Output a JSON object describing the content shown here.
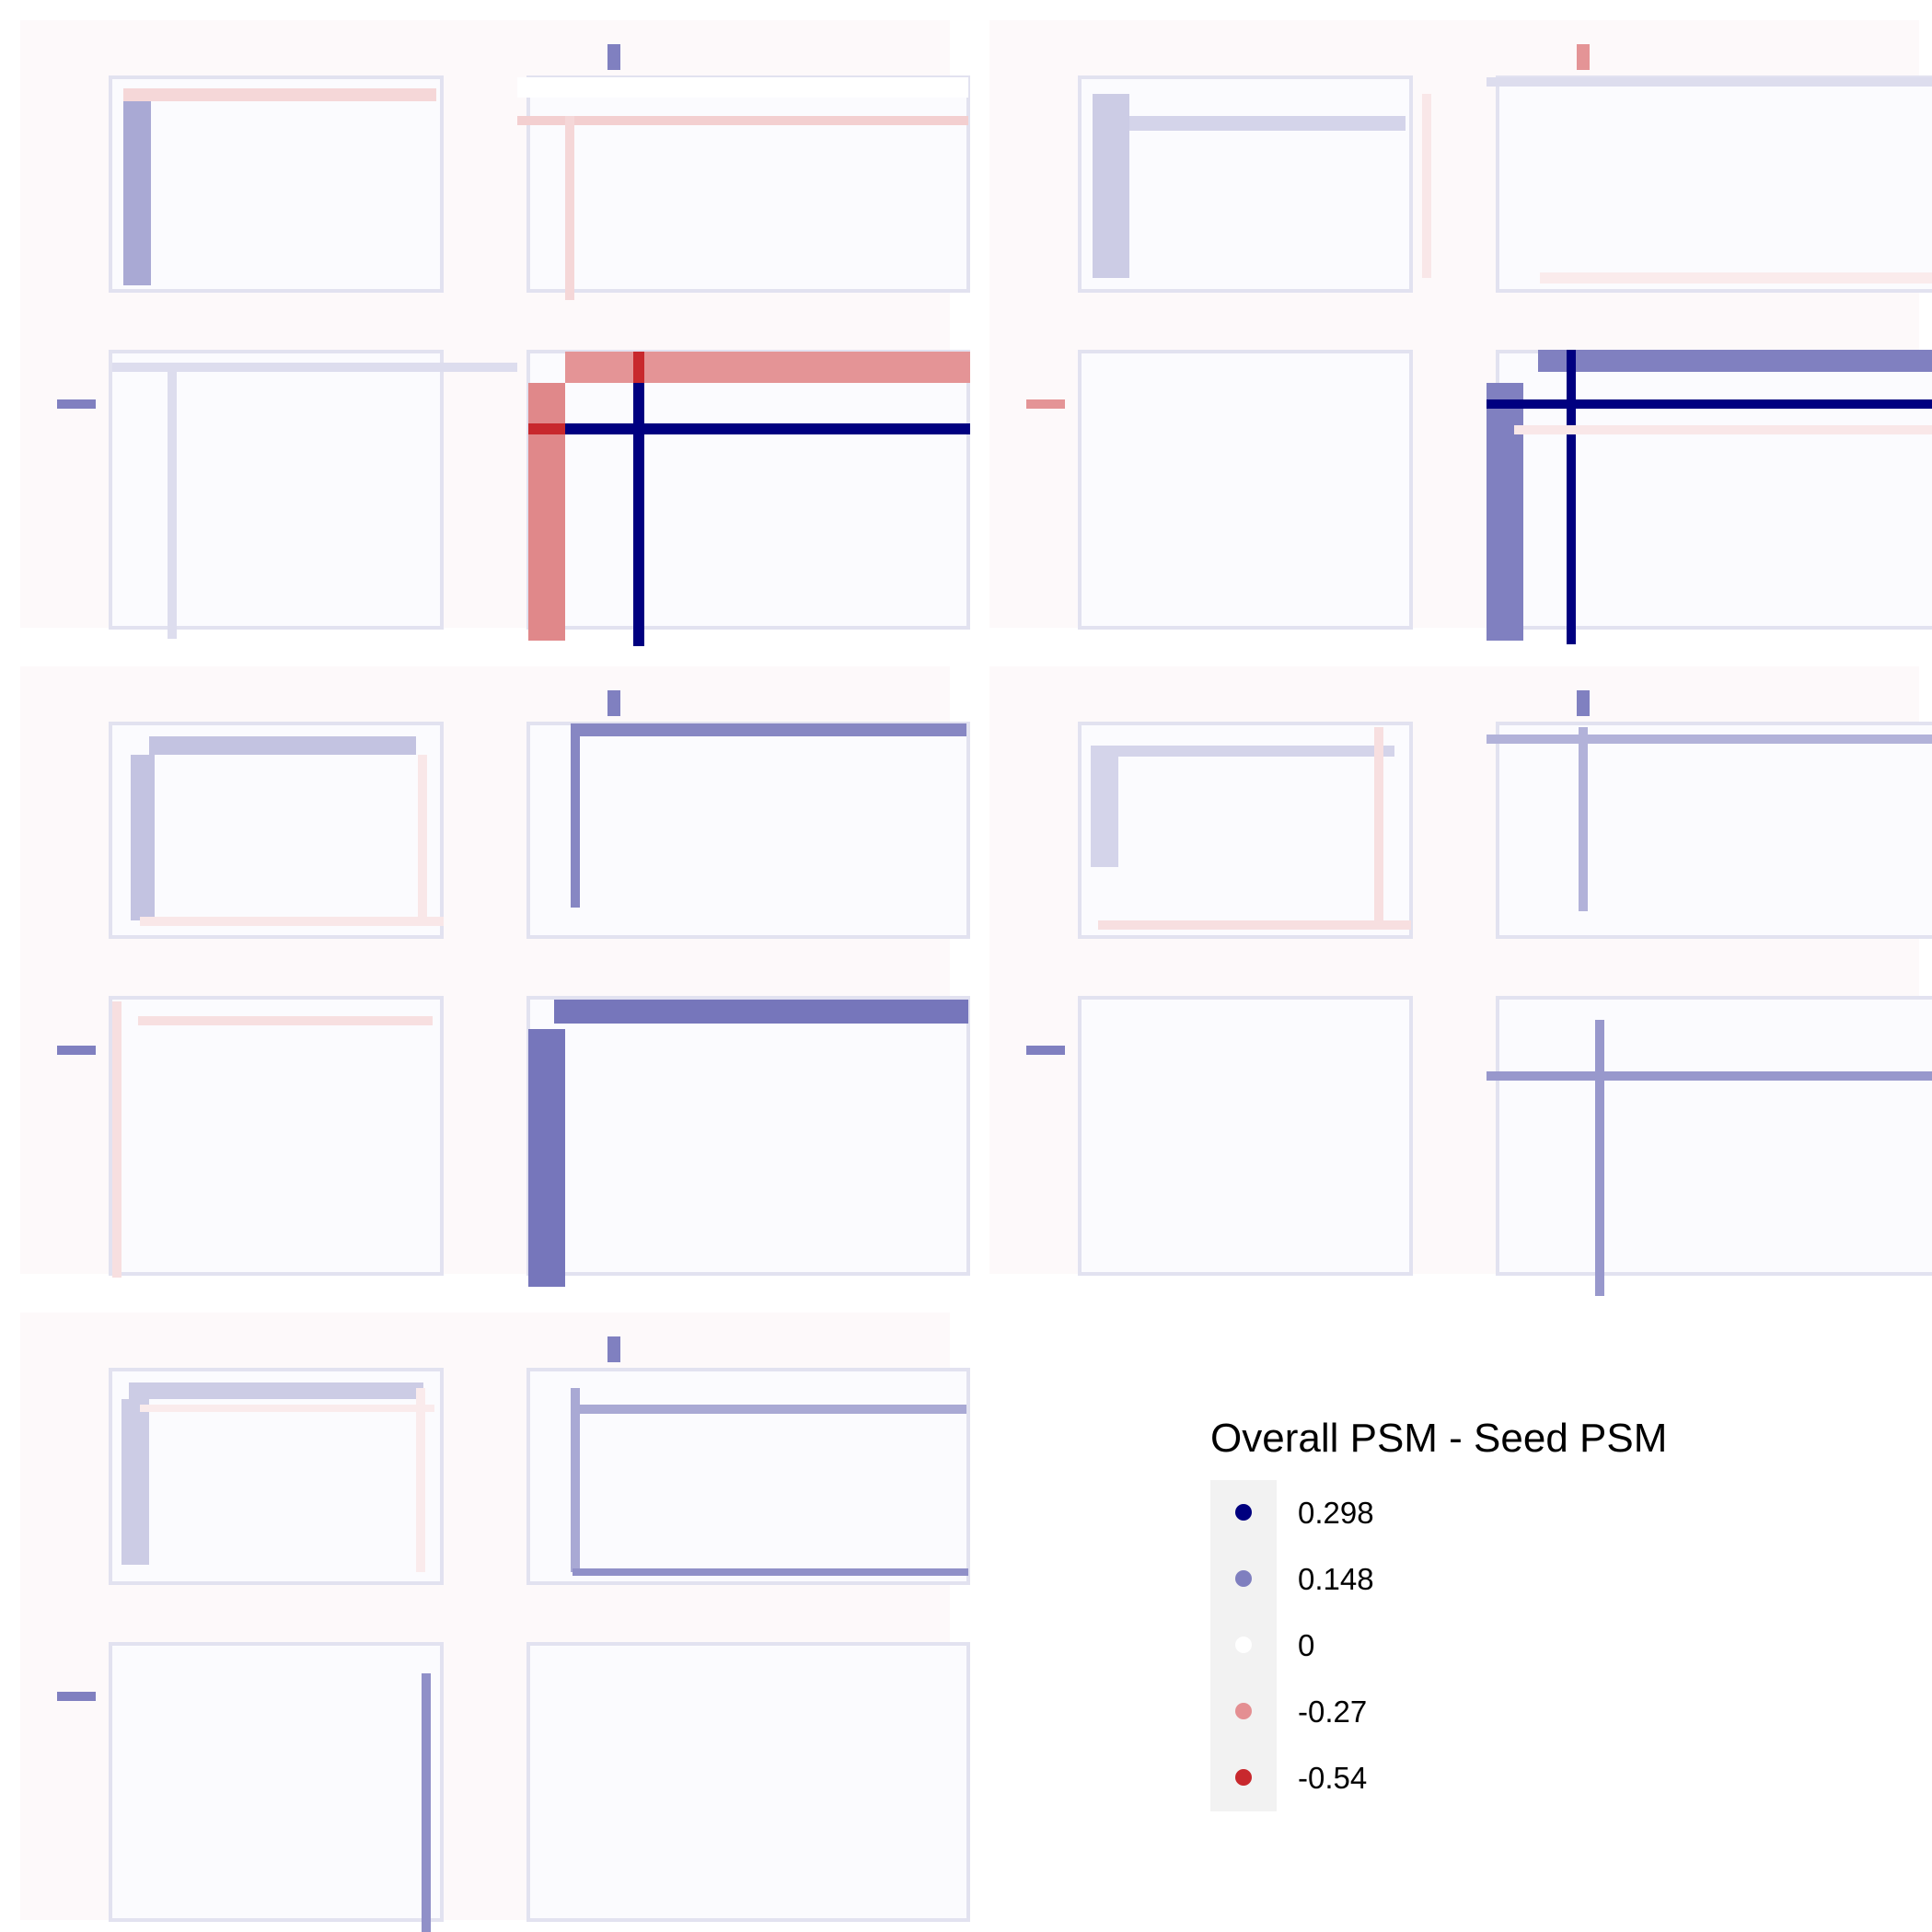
{
  "chart_data": {
    "type": "heatmap",
    "title": "",
    "panels": [
      {
        "name": "",
        "marker_row_value": 0.148,
        "marker_col_value": 0.148,
        "stripes": [
          {
            "dir": "h",
            "value": 0.0
          },
          {
            "dir": "h",
            "value": -0.12
          },
          {
            "dir": "v",
            "value": -0.1
          },
          {
            "dir": "h",
            "value": 0.04
          },
          {
            "dir": "v",
            "value": 0.04
          },
          {
            "dir": "h",
            "value": -0.1
          },
          {
            "dir": "v",
            "value": 0.1
          },
          {
            "dir": "h",
            "value": -0.27
          },
          {
            "dir": "v",
            "value": -0.3
          },
          {
            "dir": "h",
            "value": 0.298
          },
          {
            "dir": "v",
            "value": 0.298
          },
          {
            "dir": "cell",
            "value": -0.54
          },
          {
            "dir": "cell",
            "value": -0.54
          }
        ]
      },
      {
        "name": "",
        "marker_row_value": -0.27,
        "marker_col_value": -0.27,
        "stripes": [
          {
            "dir": "h",
            "value": 0.05
          },
          {
            "dir": "v",
            "value": 0.06
          },
          {
            "dir": "h",
            "value": 0.04
          },
          {
            "dir": "v",
            "value": -0.06
          },
          {
            "dir": "h",
            "value": -0.05
          },
          {
            "dir": "h",
            "value": 0.148
          },
          {
            "dir": "v",
            "value": 0.148
          },
          {
            "dir": "h",
            "value": 0.298
          },
          {
            "dir": "v",
            "value": 0.298
          },
          {
            "dir": "h",
            "value": -0.06
          }
        ]
      },
      {
        "name": "",
        "marker_row_value": 0.148,
        "marker_col_value": 0.148,
        "stripes": [
          {
            "dir": "h",
            "value": 0.07
          },
          {
            "dir": "v",
            "value": 0.07
          },
          {
            "dir": "h",
            "value": -0.06
          },
          {
            "dir": "v",
            "value": -0.06
          },
          {
            "dir": "h",
            "value": 0.14
          },
          {
            "dir": "v",
            "value": 0.14
          },
          {
            "dir": "h",
            "value": 0.16
          },
          {
            "dir": "v",
            "value": 0.16
          },
          {
            "dir": "h",
            "value": -0.08
          },
          {
            "dir": "v",
            "value": -0.08
          }
        ]
      },
      {
        "name": "",
        "marker_row_value": 0.148,
        "marker_col_value": 0.148,
        "stripes": [
          {
            "dir": "h",
            "value": 0.05
          },
          {
            "dir": "v",
            "value": 0.05
          },
          {
            "dir": "h",
            "value": 0.09
          },
          {
            "dir": "v",
            "value": 0.09
          },
          {
            "dir": "h",
            "value": -0.08
          },
          {
            "dir": "v",
            "value": -0.08
          },
          {
            "dir": "h",
            "value": 0.12
          },
          {
            "dir": "v",
            "value": 0.12
          }
        ]
      },
      {
        "name": "",
        "marker_row_value": 0.148,
        "marker_col_value": 0.148,
        "stripes": [
          {
            "dir": "h",
            "value": 0.06
          },
          {
            "dir": "v",
            "value": 0.06
          },
          {
            "dir": "h",
            "value": -0.05
          },
          {
            "dir": "v",
            "value": -0.05
          },
          {
            "dir": "h",
            "value": 0.1
          },
          {
            "dir": "v",
            "value": 0.1
          },
          {
            "dir": "h",
            "value": 0.13
          },
          {
            "dir": "v",
            "value": 0.13
          }
        ]
      }
    ],
    "color_scale": {
      "high": "#000080",
      "mid": "#FFFFFF",
      "low": "#C8282D",
      "max": 0.298,
      "min": -0.54
    },
    "legend": {
      "title": "Overall PSM - Seed PSM",
      "position": "right",
      "entries": [
        {
          "label": "0.298",
          "value": 0.298,
          "color": "#00007F"
        },
        {
          "label": "0.148",
          "value": 0.148,
          "color": "#7F7FBF"
        },
        {
          "label": "0",
          "value": 0,
          "color": "#FFFFFF"
        },
        {
          "label": "-0.27",
          "value": -0.27,
          "color": "#E48F92"
        },
        {
          "label": "-0.54",
          "value": -0.54,
          "color": "#C8282D"
        }
      ]
    },
    "grid": false
  }
}
